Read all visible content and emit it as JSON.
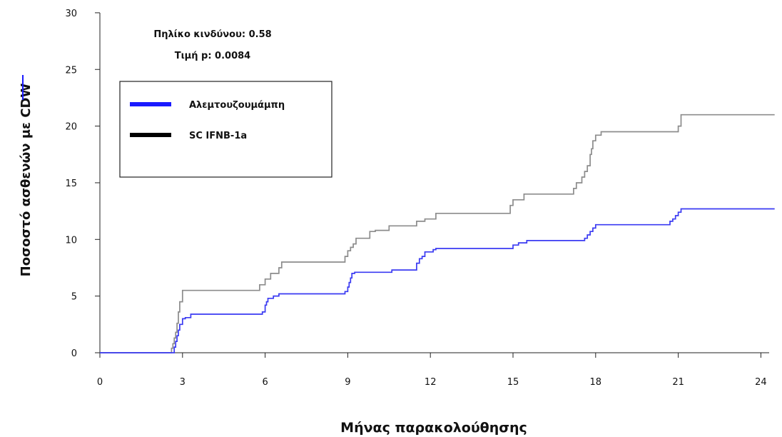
{
  "chart_data": {
    "type": "line",
    "title": "",
    "xlabel": "Μήνας παρακολούθησης",
    "ylabel": "Ποσοστό ασθενών με CDW",
    "xlim": [
      0,
      24.5
    ],
    "ylim": [
      0,
      30
    ],
    "xticks": [
      0,
      3,
      6,
      9,
      12,
      15,
      18,
      21,
      24
    ],
    "yticks": [
      0,
      5,
      10,
      15,
      20,
      25,
      30
    ],
    "grid": false,
    "legend_position": "top-left",
    "annotations": [
      "Πηλίκο κινδύνου: 0.58",
      "Τιμή p: 0.0084"
    ],
    "series": [
      {
        "name": "Αλεμτουζουμάμπη",
        "color": "#3a3af2",
        "legend_color": "#1a1aff",
        "step": true,
        "x": [
          0,
          2.7,
          2.75,
          2.8,
          2.85,
          2.9,
          3.0,
          3.1,
          3.3,
          5.7,
          5.9,
          6.0,
          6.05,
          6.1,
          6.3,
          6.5,
          8.7,
          8.9,
          9.0,
          9.05,
          9.1,
          9.15,
          9.25,
          10.5,
          10.6,
          11.4,
          11.5,
          11.6,
          11.7,
          11.8,
          12.1,
          12.2,
          14.8,
          15.0,
          15.2,
          15.5,
          17.5,
          17.6,
          17.7,
          17.8,
          17.9,
          18.0,
          20.5,
          20.7,
          20.8,
          20.9,
          21.0,
          21.1,
          24.5
        ],
        "y": [
          0,
          0.5,
          1.0,
          1.5,
          2.0,
          2.5,
          3.0,
          3.1,
          3.4,
          3.4,
          3.6,
          4.2,
          4.5,
          4.8,
          5.0,
          5.2,
          5.2,
          5.4,
          5.8,
          6.2,
          6.6,
          7.0,
          7.1,
          7.1,
          7.3,
          7.3,
          7.9,
          8.3,
          8.5,
          8.9,
          9.1,
          9.2,
          9.2,
          9.5,
          9.7,
          9.9,
          9.9,
          10.1,
          10.4,
          10.7,
          11.0,
          11.3,
          11.3,
          11.6,
          11.8,
          12.1,
          12.4,
          12.7,
          12.7
        ]
      },
      {
        "name": "SC IFNB-1a",
        "color": "#8c8c8c",
        "legend_color": "#000000",
        "step": true,
        "x": [
          0,
          2.6,
          2.65,
          2.7,
          2.75,
          2.8,
          2.85,
          2.9,
          3.0,
          5.6,
          5.8,
          6.0,
          6.2,
          6.5,
          6.6,
          8.8,
          8.9,
          9.0,
          9.1,
          9.2,
          9.3,
          9.8,
          10.0,
          10.5,
          11.5,
          11.8,
          12.2,
          14.8,
          14.9,
          15.0,
          15.4,
          17.2,
          17.3,
          17.5,
          17.6,
          17.7,
          17.8,
          17.85,
          17.9,
          18.0,
          18.2,
          20.5,
          21.0,
          21.1,
          24.5
        ],
        "y": [
          0,
          0.4,
          0.8,
          1.3,
          1.8,
          2.6,
          3.6,
          4.5,
          5.5,
          5.5,
          6.0,
          6.5,
          7.0,
          7.5,
          8.0,
          8.0,
          8.5,
          9.0,
          9.3,
          9.6,
          10.1,
          10.7,
          10.8,
          11.2,
          11.6,
          11.8,
          12.3,
          12.3,
          13.0,
          13.5,
          14.0,
          14.5,
          15.0,
          15.5,
          16.0,
          16.5,
          17.5,
          18.0,
          18.7,
          19.2,
          19.5,
          19.5,
          20.0,
          21.0,
          21.0
        ]
      }
    ]
  }
}
